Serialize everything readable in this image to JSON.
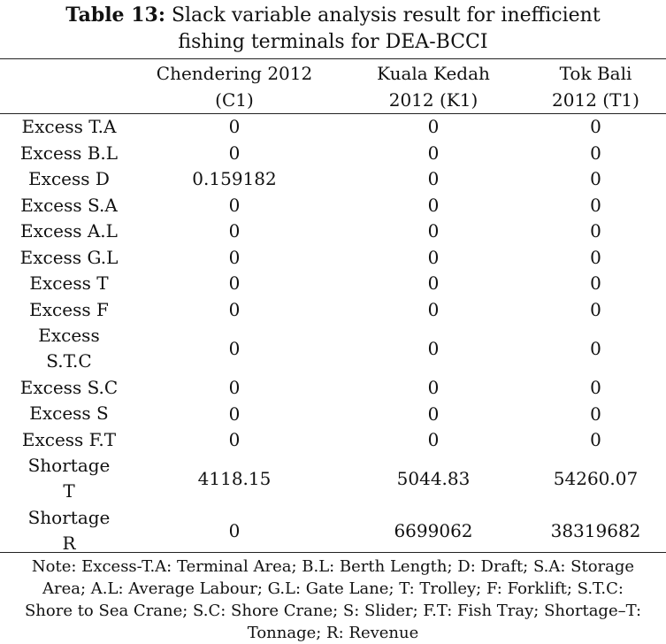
{
  "caption": {
    "label": "Table 13:",
    "line1": "Slack variable analysis result for inefficient",
    "line2": "fishing terminals for DEA-BCCI"
  },
  "columns": [
    {
      "line1": "Chendering 2012",
      "line2": "(C1)"
    },
    {
      "line1": "Kuala Kedah",
      "line2": "2012 (K1)"
    },
    {
      "line1": "Tok Bali",
      "line2": "2012 (T1)"
    }
  ],
  "rows": [
    {
      "label1": "Excess T.A",
      "label2": "",
      "c1": "0",
      "k1": "0",
      "t1": "0"
    },
    {
      "label1": "Excess B.L",
      "label2": "",
      "c1": "0",
      "k1": "0",
      "t1": "0"
    },
    {
      "label1": "Excess D",
      "label2": "",
      "c1": "0.159182",
      "k1": "0",
      "t1": "0"
    },
    {
      "label1": "Excess S.A",
      "label2": "",
      "c1": "0",
      "k1": "0",
      "t1": "0"
    },
    {
      "label1": "Excess A.L",
      "label2": "",
      "c1": "0",
      "k1": "0",
      "t1": "0"
    },
    {
      "label1": "Excess G.L",
      "label2": "",
      "c1": "0",
      "k1": "0",
      "t1": "0"
    },
    {
      "label1": "Excess T",
      "label2": "",
      "c1": "0",
      "k1": "0",
      "t1": "0"
    },
    {
      "label1": "Excess F",
      "label2": "",
      "c1": "0",
      "k1": "0",
      "t1": "0"
    },
    {
      "label1": "Excess",
      "label2": "S.T.C",
      "c1": "0",
      "k1": "0",
      "t1": "0"
    },
    {
      "label1": "Excess S.C",
      "label2": "",
      "c1": "0",
      "k1": "0",
      "t1": "0"
    },
    {
      "label1": "Excess S",
      "label2": "",
      "c1": "0",
      "k1": "0",
      "t1": "0"
    },
    {
      "label1": "Excess F.T",
      "label2": "",
      "c1": "0",
      "k1": "0",
      "t1": "0"
    },
    {
      "label1": "Shortage",
      "label2": "T",
      "c1": "4118.15",
      "k1": "5044.83",
      "t1": "54260.07"
    },
    {
      "label1": "Shortage",
      "label2": "R",
      "c1": "0",
      "k1": "6699062",
      "t1": "38319682"
    }
  ],
  "note": {
    "line1": "Note: Excess-T.A: Terminal Area; B.L: Berth Length; D: Draft; S.A: Storage",
    "line2": "Area; A.L: Average Labour; G.L: Gate Lane; T: Trolley; F: Forklift; S.T.C:",
    "line3": "Shore to Sea Crane; S.C: Shore Crane; S: Slider; F.T: Fish Tray; Shortage–T:",
    "line4": "Tonnage; R: Revenue"
  }
}
